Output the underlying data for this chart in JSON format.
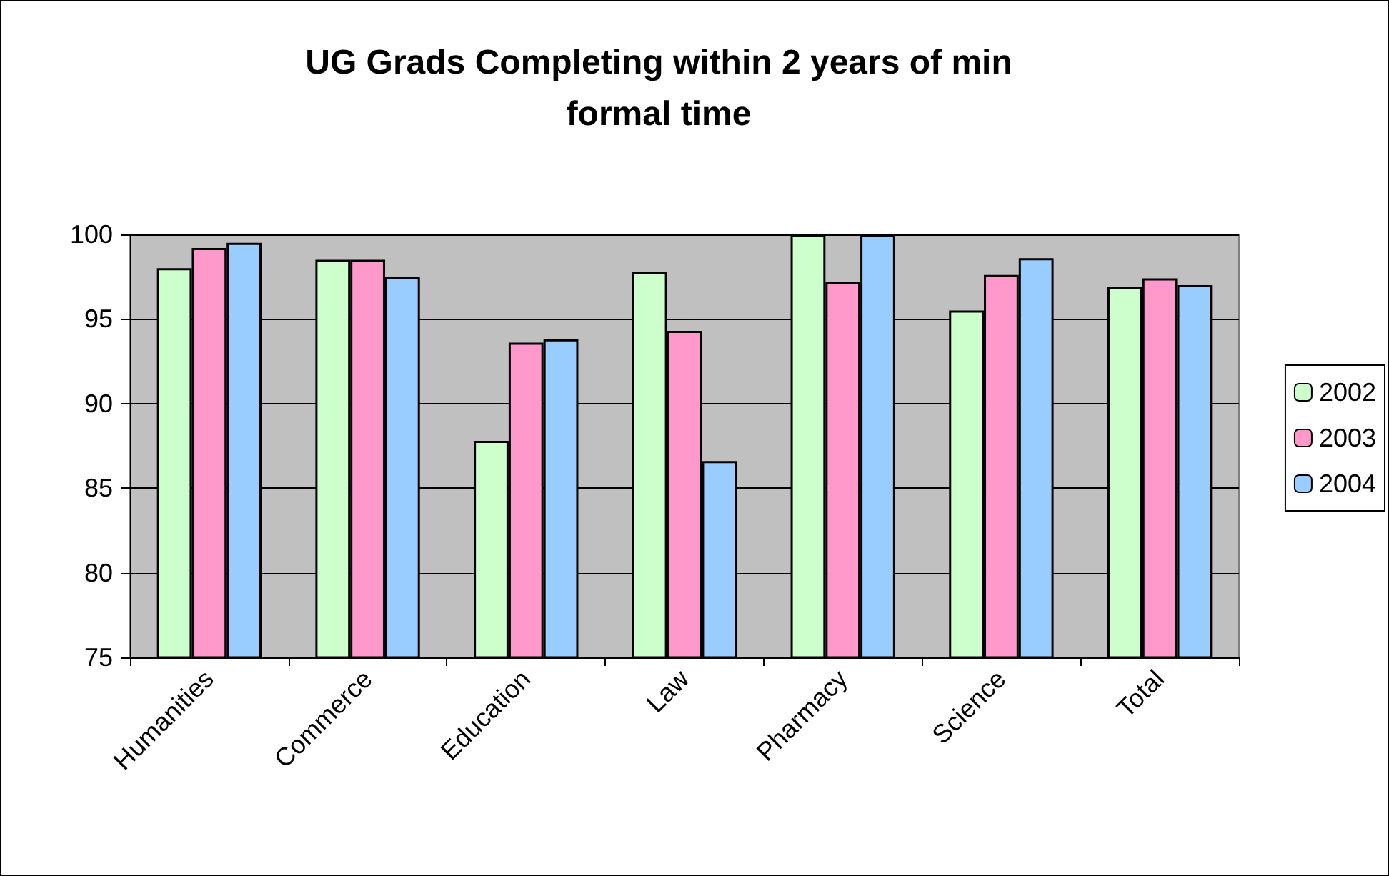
{
  "chart_data": {
    "type": "bar",
    "title": "UG Grads Completing within 2 years of min\nformal time",
    "categories": [
      "Humanities",
      "Commerce",
      "Education",
      "Law",
      "Pharmacy",
      "Science",
      "Total"
    ],
    "series": [
      {
        "name": "2002",
        "color": "#ccffcc",
        "values": [
          98.0,
          98.5,
          87.8,
          97.8,
          100,
          95.5,
          96.9
        ]
      },
      {
        "name": "2003",
        "color": "#ff99cc",
        "values": [
          99.2,
          98.5,
          93.6,
          94.3,
          97.2,
          97.6,
          97.4
        ]
      },
      {
        "name": "2004",
        "color": "#99ccff",
        "values": [
          99.5,
          97.5,
          93.8,
          86.6,
          100,
          98.6,
          97.0
        ]
      }
    ],
    "ylim": [
      75,
      100
    ],
    "yticks": [
      75,
      80,
      85,
      90,
      95,
      100
    ],
    "grid": "y",
    "legend": "right"
  }
}
